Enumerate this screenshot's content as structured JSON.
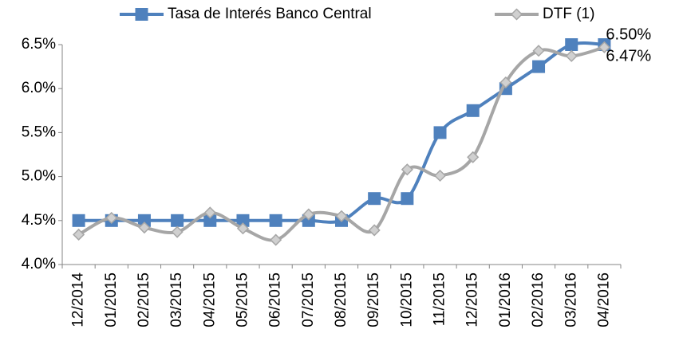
{
  "chart_data": {
    "type": "line",
    "categories": [
      "12/2014",
      "01/2015",
      "02/2015",
      "03/2015",
      "04/2015",
      "05/2015",
      "06/2015",
      "07/2015",
      "08/2015",
      "09/2015",
      "10/2015",
      "11/2015",
      "12/2015",
      "01/2016",
      "02/2016",
      "03/2016",
      "04/2016"
    ],
    "series": [
      {
        "name": "Tasa de Interés Banco Central",
        "color": "#4f81bd",
        "marker": "square",
        "values": [
          4.5,
          4.5,
          4.5,
          4.5,
          4.5,
          4.5,
          4.5,
          4.5,
          4.5,
          4.75,
          4.75,
          5.5,
          5.75,
          6.0,
          6.25,
          6.5,
          6.5
        ],
        "value_labels": [
          null,
          null,
          null,
          null,
          null,
          null,
          null,
          null,
          null,
          null,
          null,
          null,
          null,
          null,
          null,
          null,
          "6.50%"
        ]
      },
      {
        "name": "DTF (1)",
        "color": "#a6a6a6",
        "marker": "diamond",
        "values": [
          4.34,
          4.53,
          4.42,
          4.37,
          4.59,
          4.41,
          4.28,
          4.57,
          4.55,
          4.39,
          5.08,
          5.01,
          5.22,
          6.07,
          6.43,
          6.37,
          6.47
        ],
        "value_labels": [
          null,
          null,
          null,
          null,
          null,
          null,
          null,
          null,
          null,
          null,
          null,
          null,
          null,
          null,
          null,
          null,
          "6.47%"
        ]
      }
    ],
    "ylim": [
      4.0,
      6.5
    ],
    "yticks": [
      {
        "value": 4.0,
        "label": "4.0%"
      },
      {
        "value": 4.5,
        "label": "4.5%"
      },
      {
        "value": 5.0,
        "label": "5.0%"
      },
      {
        "value": 5.5,
        "label": "5.5%"
      },
      {
        "value": 6.0,
        "label": "6.0%"
      },
      {
        "value": 6.5,
        "label": "6.5%"
      }
    ],
    "grid": false,
    "smooth": true,
    "legend": "top"
  }
}
